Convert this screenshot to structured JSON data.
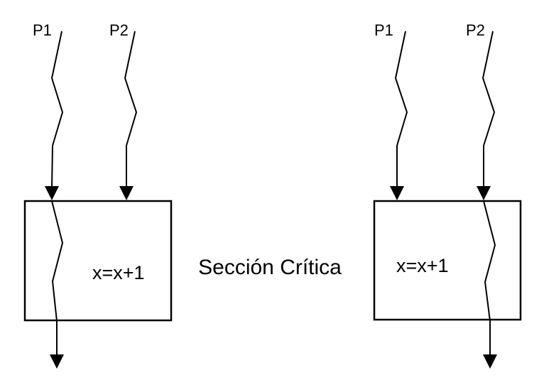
{
  "diagram": {
    "center_label": "Sección Crítica",
    "left": {
      "process_1": "P1",
      "process_2": "P2",
      "expression": "x=x+1"
    },
    "right": {
      "process_1": "P1",
      "process_2": "P2",
      "expression": "x=x+1"
    }
  }
}
